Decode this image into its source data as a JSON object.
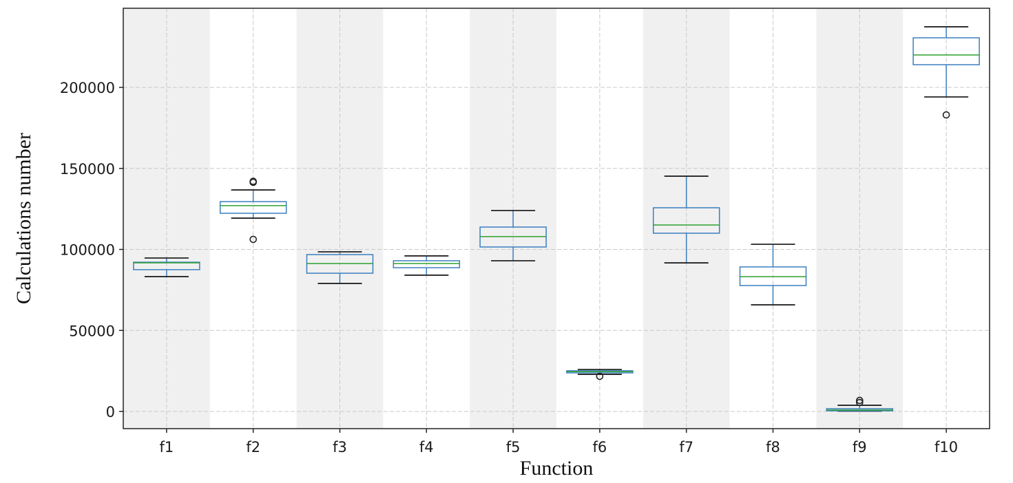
{
  "chart_data": {
    "type": "box",
    "title": "",
    "xlabel": "Function",
    "ylabel": "Calculations number",
    "ylim": [
      -10500,
      250000
    ],
    "yticks": [
      0,
      50000,
      100000,
      150000,
      200000
    ],
    "ytick_labels": [
      "0",
      "50000",
      "100000",
      "150000",
      "200000"
    ],
    "grid": true,
    "alternating_band_color": "#f0f0f0",
    "colors": {
      "box": "#3a7ebf",
      "median": "#2ca02c",
      "whisker_cap": "#222222",
      "flier": "#222222",
      "grid": "#c8c8c8"
    },
    "categories": [
      "f1",
      "f2",
      "f3",
      "f4",
      "f5",
      "f6",
      "f7",
      "f8",
      "f9",
      "f10"
    ],
    "series": [
      {
        "name": "f1",
        "whislo": 83200,
        "q1": 87500,
        "med": 91700,
        "q3": 92100,
        "whishi": 94700,
        "fliers": []
      },
      {
        "name": "f2",
        "whislo": 119300,
        "q1": 122300,
        "med": 127000,
        "q3": 129500,
        "whishi": 136700,
        "fliers": [
          106200,
          141400,
          142000
        ]
      },
      {
        "name": "f3",
        "whislo": 79000,
        "q1": 85300,
        "med": 91300,
        "q3": 96800,
        "whishi": 98500,
        "fliers": []
      },
      {
        "name": "f4",
        "whislo": 84100,
        "q1": 88700,
        "med": 91300,
        "q3": 93000,
        "whishi": 96000,
        "fliers": []
      },
      {
        "name": "f5",
        "whislo": 93000,
        "q1": 101500,
        "med": 107900,
        "q3": 113800,
        "whishi": 124000,
        "fliers": []
      },
      {
        "name": "f6",
        "whislo": 22900,
        "q1": 23800,
        "med": 24600,
        "q3": 25100,
        "whishi": 25900,
        "fliers": [
          21700
        ]
      },
      {
        "name": "f7",
        "whislo": 91700,
        "q1": 110000,
        "med": 115100,
        "q3": 125700,
        "whishi": 145200,
        "fliers": []
      },
      {
        "name": "f8",
        "whislo": 65800,
        "q1": 77700,
        "med": 83200,
        "q3": 89200,
        "whishi": 103200,
        "fliers": []
      },
      {
        "name": "f9",
        "whislo": 200,
        "q1": 400,
        "med": 850,
        "q3": 1700,
        "whishi": 3800,
        "fliers": [
          5500,
          6800
        ]
      },
      {
        "name": "f10",
        "whislo": 194100,
        "q1": 214000,
        "med": 220000,
        "q3": 230600,
        "whishi": 237400,
        "fliers": [
          183000
        ]
      }
    ]
  }
}
